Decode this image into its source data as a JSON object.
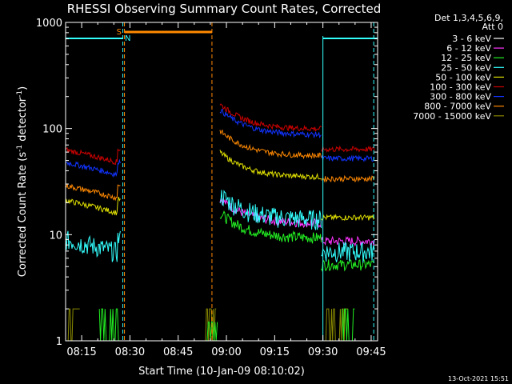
{
  "chart_data": {
    "type": "line",
    "title": "RHESSI Observing Summary Count Rates, Corrected",
    "xlabel": "Start Time (10-Jan-09 08:10:02)",
    "ylabel": "Corrected Count Rate (s",
    "ylabel_sup1": "-1",
    "ylabel_mid": " detector",
    "ylabel_sup2": "-1",
    "ylabel_end": ")",
    "y_scale": "log",
    "ylim": [
      1,
      1000
    ],
    "xlim_minutes": [
      0,
      97
    ],
    "x_ticks": [
      {
        "label": "08:15",
        "t": 5
      },
      {
        "label": "08:30",
        "t": 20
      },
      {
        "label": "08:45",
        "t": 35
      },
      {
        "label": "09:00",
        "t": 50
      },
      {
        "label": "09:15",
        "t": 65
      },
      {
        "label": "09:30",
        "t": 80
      },
      {
        "label": "09:45",
        "t": 95
      }
    ],
    "y_ticks": [
      {
        "label": "1",
        "v": 1
      },
      {
        "label": "10",
        "v": 10
      },
      {
        "label": "100",
        "v": 100
      },
      {
        "label": "1000",
        "v": 1000
      }
    ],
    "legend_header": [
      "Det 1,3,4,5,6,9,",
      "Att 0"
    ],
    "legend_placement": "right",
    "series": [
      {
        "name": "3 - 6 keV",
        "color": "#000000"
      },
      {
        "name": "6 - 12 keV",
        "color": "#ff33ff"
      },
      {
        "name": "12 - 25 keV",
        "color": "#22ee22"
      },
      {
        "name": "25 - 50 keV",
        "color": "#33ffff"
      },
      {
        "name": "50 - 100 keV",
        "color": "#dddd00"
      },
      {
        "name": "100 - 300 keV",
        "color": "#cc0000"
      },
      {
        "name": "300 - 800 keV",
        "color": "#1133ff"
      },
      {
        "name": "800 - 7000 keV",
        "color": "#ff8800"
      },
      {
        "name": "7000 - 15000 keV",
        "color": "#888800"
      }
    ],
    "flags": [
      {
        "label": "S",
        "color": "#ff8800"
      },
      {
        "label": "N",
        "color": "#33ffff"
      }
    ],
    "footer_date": "13-Oct-2021 15:51"
  }
}
